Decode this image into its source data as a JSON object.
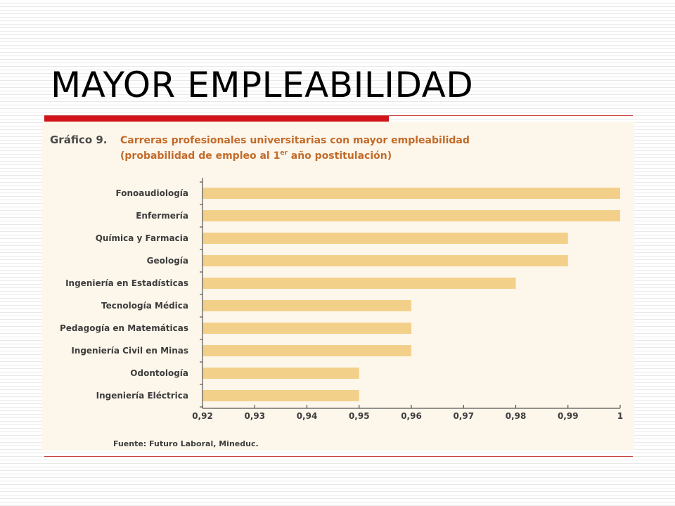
{
  "slide": {
    "title": "MAYOR EMPLEABILIDAD"
  },
  "figure": {
    "number": "Gráfico 9.",
    "title_line1": "Carreras profesionales universitarias con mayor empleabilidad",
    "title_line2_pre": "(probabilidad de empleo al 1",
    "title_line2_sup": "er",
    "title_line2_post": " año postitulación)",
    "source": "Fuente: Futuro Laboral, Mineduc."
  },
  "colors": {
    "bar": "#f3d08a",
    "title_accent": "#d0141a",
    "figure_title": "#c26b2a"
  },
  "chart_data": {
    "type": "bar",
    "orientation": "horizontal",
    "title": "Carreras profesionales universitarias con mayor empleabilidad (probabilidad de empleo al 1er año postitulación)",
    "categories": [
      "Fonoaudiología",
      "Enfermería",
      "Química y Farmacia",
      "Geología",
      "Ingeniería en Estadísticas",
      "Tecnología Médica",
      "Pedagogía en Matemáticas",
      "Ingeniería Civil en Minas",
      "Odontología",
      "Ingeniería Eléctrica"
    ],
    "values": [
      1.0,
      1.0,
      0.99,
      0.99,
      0.98,
      0.96,
      0.96,
      0.96,
      0.95,
      0.95
    ],
    "xlim": [
      0.92,
      1.0
    ],
    "xticks": [
      0.92,
      0.93,
      0.94,
      0.95,
      0.96,
      0.97,
      0.98,
      0.99,
      1.0
    ],
    "xtick_labels": [
      "0,92",
      "0,93",
      "0,94",
      "0,95",
      "0,96",
      "0,97",
      "0,98",
      "0,99",
      "1"
    ],
    "xlabel": "",
    "ylabel": "",
    "grid": false,
    "legend": "none"
  }
}
